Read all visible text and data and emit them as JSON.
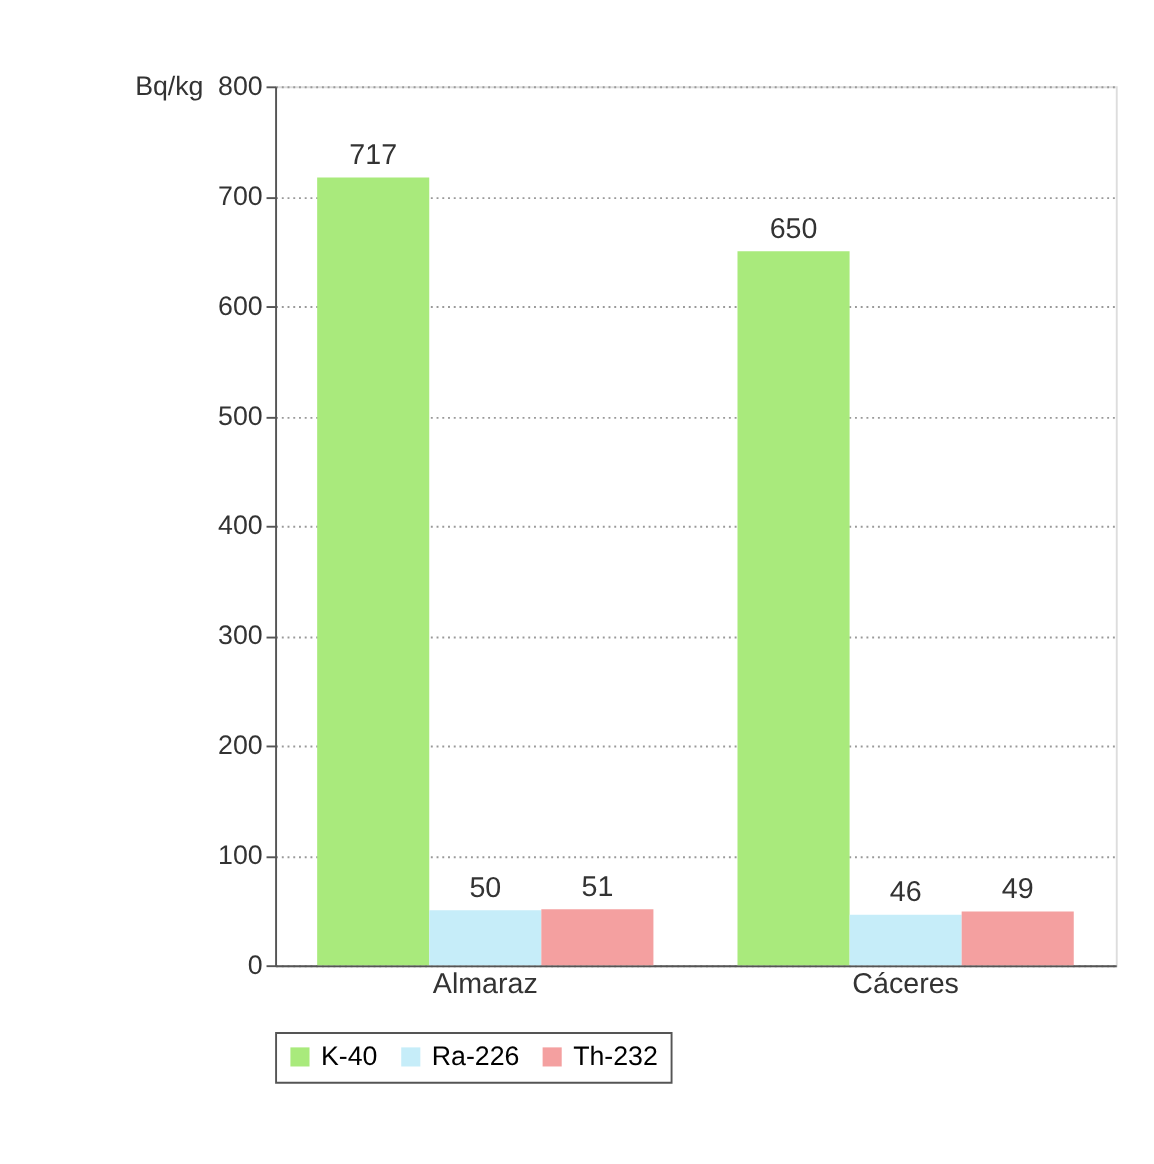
{
  "chart_data": {
    "type": "bar",
    "ylabel": "Bq/kg",
    "categories": [
      "Almaraz",
      "Cáceres"
    ],
    "series": [
      {
        "name": "K-40",
        "color": "#a9ea7c",
        "values": [
          717,
          650
        ]
      },
      {
        "name": "Ra-226",
        "color": "#c6edf9",
        "values": [
          50,
          46
        ]
      },
      {
        "name": "Th-232",
        "color": "#f4a0a0",
        "values": [
          51,
          49
        ]
      }
    ],
    "ylim": [
      0,
      800
    ],
    "yticks": [
      0,
      100,
      200,
      300,
      400,
      500,
      600,
      700,
      800
    ],
    "grid": "y",
    "legend": "bottom",
    "data_labels": true
  }
}
